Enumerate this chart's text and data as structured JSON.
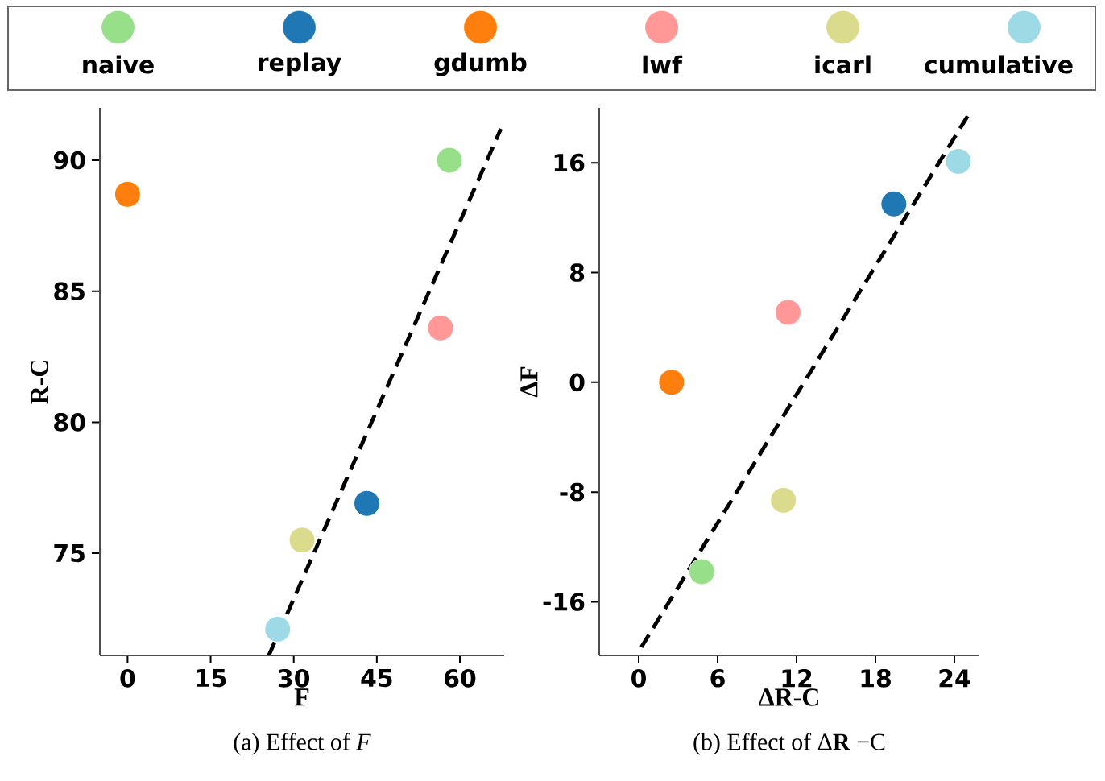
{
  "chart_data": [
    {
      "type": "scatter",
      "xlabel": "F",
      "ylabel": "R-C",
      "annotations": [
        "(a) Effect of *F*"
      ],
      "xlim": [
        -5,
        68
      ],
      "ylim": [
        71.1,
        92
      ],
      "xticks": [
        0,
        15,
        30,
        45,
        60
      ],
      "yticks": [
        75,
        80,
        85,
        90
      ],
      "legend": "top",
      "marker": "circle",
      "series": [
        {
          "name": "naive",
          "color": "#98df8a",
          "x": [
            58.1
          ],
          "values": [
            90
          ]
        },
        {
          "name": "replay",
          "color": "#1f77b4",
          "x": [
            43.2
          ],
          "values": [
            76.9
          ]
        },
        {
          "name": "gdumb",
          "color": "#ff7f0e",
          "x": [
            0
          ],
          "values": [
            88.7
          ]
        },
        {
          "name": "lwf",
          "color": "#ff9896",
          "x": [
            56.5
          ],
          "values": [
            83.6
          ]
        },
        {
          "name": "icarl",
          "color": "#dbdb8d",
          "x": [
            31.5
          ],
          "values": [
            75.5
          ]
        },
        {
          "name": "cumulative",
          "color": "#9edae5",
          "x": [
            27.1
          ],
          "values": [
            72.1
          ]
        },
        {
          "type": "line",
          "line_style": "dashed",
          "marker": "none",
          "color": "#000000",
          "x": [
            25.5,
            67.4
          ],
          "values": [
            71.1,
            91.2
          ]
        }
      ]
    },
    {
      "type": "scatter",
      "xlabel": "ΔR-C",
      "ylabel": "ΔF",
      "annotations": [
        "(b) Effect of Δ**R** −C"
      ],
      "xlim": [
        -3,
        25.9
      ],
      "ylim": [
        -19.9,
        20
      ],
      "xticks": [
        0,
        6,
        12,
        18,
        24
      ],
      "yticks": [
        -16,
        -8,
        0,
        8,
        16
      ],
      "marker": "circle",
      "series": [
        {
          "color": "#98df8a",
          "x": [
            4.8
          ],
          "values": [
            -13.8
          ]
        },
        {
          "color": "#1f77b4",
          "x": [
            19.4
          ],
          "values": [
            13.0
          ]
        },
        {
          "color": "#ff7f0e",
          "x": [
            2.5
          ],
          "values": [
            0
          ]
        },
        {
          "color": "#ff9896",
          "x": [
            11.35
          ],
          "values": [
            5.1
          ]
        },
        {
          "color": "#dbdb8d",
          "x": [
            11.0
          ],
          "values": [
            -8.6
          ]
        },
        {
          "color": "#9edae5",
          "x": [
            24.3
          ],
          "values": [
            16.1
          ]
        },
        {
          "type": "line",
          "line_style": "dashed",
          "marker": "none",
          "color": "#000000",
          "x": [
            0.2,
            25.2
          ],
          "values": [
            -19.3,
            19.7
          ]
        }
      ]
    }
  ]
}
